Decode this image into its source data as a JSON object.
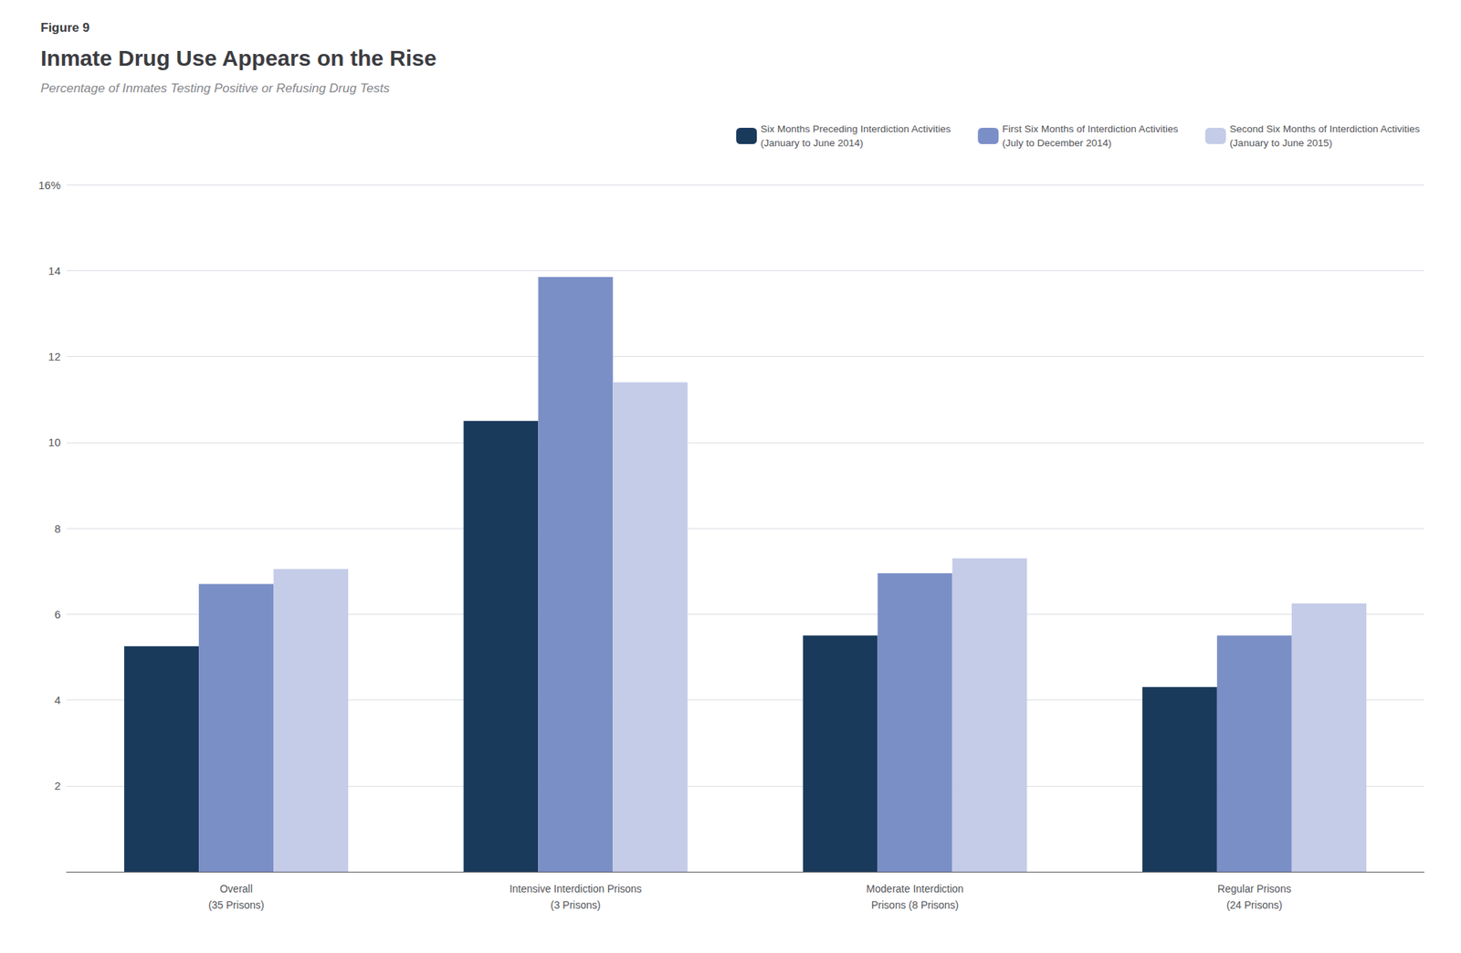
{
  "chart_data": {
    "type": "bar",
    "annotations": [
      "Figure 9"
    ],
    "title": "Inmate Drug Use Appears on the Rise",
    "subtitle": "Percentage of Inmates Testing Positive or Refusing Drug Tests",
    "categories": [
      "Overall\n(35 Prisons)",
      "Intensive Interdiction Prisons\n(3 Prisons)",
      "Moderate Interdiction\nPrisons (8 Prisons)",
      "Regular Prisons\n(24 Prisons)"
    ],
    "series": [
      {
        "name": "Six Months Preceding Interdiction Activities\n(January to June 2014)",
        "color": "#1a3a5c",
        "values": [
          5.25,
          10.5,
          5.5,
          4.3
        ]
      },
      {
        "name": "First Six Months of Interdiction Activities\n(July to December 2014)",
        "color": "#7b8fc7",
        "values": [
          6.7,
          13.85,
          6.95,
          5.5
        ]
      },
      {
        "name": "Second Six Months of Interdiction Activities\n(January to June 2015)",
        "color": "#c5cce8",
        "values": [
          7.05,
          11.4,
          7.3,
          6.25
        ]
      }
    ],
    "ylim": [
      0,
      16
    ],
    "yticks": [
      {
        "value": 0,
        "label": ""
      },
      2,
      4,
      6,
      8,
      10,
      12,
      14,
      {
        "value": 16,
        "label": "16%"
      }
    ],
    "grid": true,
    "legend": "upper right"
  }
}
